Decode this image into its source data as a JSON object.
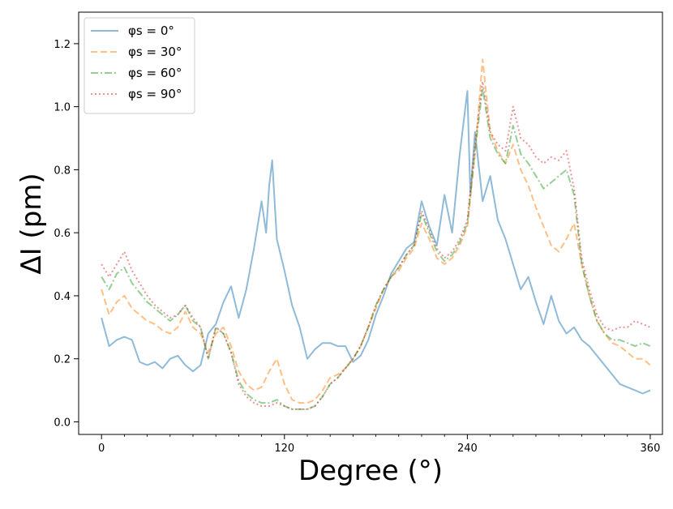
{
  "chart_data": {
    "type": "line",
    "title": "",
    "xlabel": "Degree (°)",
    "ylabel": "ΔI (pm)",
    "xlim": [
      -15,
      368
    ],
    "ylim": [
      -0.04,
      1.3
    ],
    "xticks": [
      0,
      120,
      240,
      360
    ],
    "xtick_labels": [
      "0",
      "120",
      "240",
      "360"
    ],
    "yticks": [
      0.0,
      0.2,
      0.4,
      0.6,
      0.8,
      1.0,
      1.2
    ],
    "ytick_labels": [
      "0.0",
      "0.2",
      "0.4",
      "0.6",
      "0.8",
      "1.0",
      "1.2"
    ],
    "grid": false,
    "legend_position": "top-left",
    "series": [
      {
        "name": "φs = 0°",
        "color": "#1f77b4",
        "dash": "solid",
        "x": [
          0,
          5,
          10,
          15,
          20,
          25,
          30,
          35,
          40,
          45,
          50,
          55,
          60,
          65,
          70,
          75,
          80,
          85,
          90,
          95,
          100,
          105,
          108,
          110,
          112,
          115,
          120,
          125,
          130,
          135,
          140,
          145,
          150,
          155,
          160,
          165,
          170,
          175,
          180,
          185,
          190,
          195,
          200,
          205,
          210,
          215,
          220,
          225,
          230,
          235,
          240,
          242,
          245,
          250,
          255,
          260,
          265,
          270,
          275,
          280,
          285,
          290,
          295,
          300,
          305,
          310,
          315,
          320,
          325,
          330,
          335,
          340,
          345,
          350,
          355,
          360
        ],
        "y": [
          0.33,
          0.24,
          0.26,
          0.27,
          0.26,
          0.19,
          0.18,
          0.19,
          0.17,
          0.2,
          0.21,
          0.18,
          0.16,
          0.18,
          0.28,
          0.31,
          0.38,
          0.43,
          0.33,
          0.42,
          0.55,
          0.7,
          0.6,
          0.75,
          0.83,
          0.58,
          0.48,
          0.37,
          0.3,
          0.2,
          0.23,
          0.25,
          0.25,
          0.24,
          0.24,
          0.19,
          0.21,
          0.26,
          0.34,
          0.4,
          0.47,
          0.51,
          0.55,
          0.57,
          0.7,
          0.62,
          0.56,
          0.72,
          0.6,
          0.85,
          1.05,
          0.72,
          0.92,
          0.7,
          0.78,
          0.64,
          0.58,
          0.5,
          0.42,
          0.46,
          0.38,
          0.31,
          0.4,
          0.32,
          0.28,
          0.3,
          0.26,
          0.24,
          0.21,
          0.18,
          0.15,
          0.12,
          0.11,
          0.1,
          0.09,
          0.1
        ]
      },
      {
        "name": "φs = 30°",
        "color": "#ff7f0e",
        "dash": "dashed",
        "x": [
          0,
          5,
          10,
          15,
          20,
          25,
          30,
          35,
          40,
          45,
          50,
          55,
          60,
          65,
          70,
          75,
          80,
          85,
          90,
          95,
          100,
          105,
          110,
          115,
          120,
          125,
          130,
          135,
          140,
          145,
          150,
          155,
          160,
          165,
          170,
          175,
          180,
          185,
          190,
          195,
          200,
          205,
          210,
          215,
          220,
          225,
          230,
          235,
          240,
          245,
          250,
          255,
          260,
          265,
          270,
          275,
          280,
          285,
          290,
          295,
          300,
          305,
          310,
          315,
          320,
          325,
          330,
          335,
          340,
          345,
          350,
          355,
          360
        ],
        "y": [
          0.42,
          0.34,
          0.38,
          0.4,
          0.36,
          0.34,
          0.32,
          0.31,
          0.29,
          0.28,
          0.3,
          0.35,
          0.3,
          0.28,
          0.22,
          0.28,
          0.3,
          0.24,
          0.16,
          0.12,
          0.1,
          0.11,
          0.16,
          0.2,
          0.12,
          0.07,
          0.06,
          0.06,
          0.07,
          0.1,
          0.14,
          0.15,
          0.17,
          0.2,
          0.24,
          0.3,
          0.36,
          0.42,
          0.46,
          0.48,
          0.52,
          0.55,
          0.63,
          0.58,
          0.52,
          0.5,
          0.52,
          0.56,
          0.62,
          0.85,
          1.15,
          0.92,
          0.86,
          0.82,
          0.88,
          0.8,
          0.75,
          0.68,
          0.62,
          0.56,
          0.54,
          0.58,
          0.63,
          0.5,
          0.4,
          0.32,
          0.28,
          0.25,
          0.24,
          0.22,
          0.2,
          0.2,
          0.18
        ]
      },
      {
        "name": "φs = 60°",
        "color": "#2ca02c",
        "dash": "dashdot",
        "x": [
          0,
          5,
          10,
          15,
          20,
          25,
          30,
          35,
          40,
          45,
          50,
          55,
          60,
          65,
          70,
          75,
          80,
          85,
          90,
          95,
          100,
          105,
          110,
          115,
          120,
          125,
          130,
          135,
          140,
          145,
          150,
          155,
          160,
          165,
          170,
          175,
          180,
          185,
          190,
          195,
          200,
          205,
          210,
          215,
          220,
          225,
          230,
          235,
          240,
          245,
          250,
          255,
          260,
          265,
          270,
          275,
          280,
          285,
          290,
          295,
          300,
          305,
          310,
          315,
          320,
          325,
          330,
          335,
          340,
          345,
          350,
          355,
          360
        ],
        "y": [
          0.46,
          0.42,
          0.47,
          0.49,
          0.44,
          0.41,
          0.38,
          0.36,
          0.34,
          0.32,
          0.34,
          0.37,
          0.32,
          0.3,
          0.2,
          0.3,
          0.28,
          0.22,
          0.13,
          0.09,
          0.07,
          0.06,
          0.06,
          0.07,
          0.05,
          0.04,
          0.04,
          0.04,
          0.05,
          0.08,
          0.12,
          0.14,
          0.17,
          0.2,
          0.24,
          0.3,
          0.37,
          0.42,
          0.46,
          0.49,
          0.53,
          0.56,
          0.66,
          0.6,
          0.54,
          0.51,
          0.53,
          0.57,
          0.63,
          0.86,
          1.06,
          0.9,
          0.85,
          0.82,
          0.94,
          0.85,
          0.82,
          0.78,
          0.74,
          0.76,
          0.78,
          0.8,
          0.72,
          0.5,
          0.4,
          0.32,
          0.28,
          0.26,
          0.26,
          0.25,
          0.24,
          0.25,
          0.24
        ]
      },
      {
        "name": "φs = 90°",
        "color": "#d62728",
        "dash": "dotted",
        "x": [
          0,
          5,
          10,
          15,
          20,
          25,
          30,
          35,
          40,
          45,
          50,
          55,
          60,
          65,
          70,
          75,
          80,
          85,
          90,
          95,
          100,
          105,
          110,
          115,
          120,
          125,
          130,
          135,
          140,
          145,
          150,
          155,
          160,
          165,
          170,
          175,
          180,
          185,
          190,
          195,
          200,
          205,
          210,
          215,
          220,
          225,
          230,
          235,
          240,
          245,
          250,
          255,
          260,
          265,
          270,
          275,
          280,
          285,
          290,
          295,
          300,
          305,
          310,
          315,
          320,
          325,
          330,
          335,
          340,
          345,
          350,
          355,
          360
        ],
        "y": [
          0.5,
          0.46,
          0.5,
          0.54,
          0.48,
          0.44,
          0.4,
          0.37,
          0.35,
          0.33,
          0.34,
          0.37,
          0.33,
          0.3,
          0.2,
          0.3,
          0.28,
          0.22,
          0.12,
          0.08,
          0.06,
          0.05,
          0.05,
          0.06,
          0.05,
          0.04,
          0.04,
          0.04,
          0.05,
          0.08,
          0.12,
          0.14,
          0.17,
          0.2,
          0.24,
          0.3,
          0.37,
          0.42,
          0.46,
          0.49,
          0.53,
          0.56,
          0.67,
          0.61,
          0.55,
          0.52,
          0.54,
          0.58,
          0.64,
          0.88,
          1.08,
          0.92,
          0.88,
          0.86,
          1.0,
          0.9,
          0.88,
          0.84,
          0.82,
          0.84,
          0.83,
          0.86,
          0.74,
          0.52,
          0.42,
          0.34,
          0.3,
          0.29,
          0.3,
          0.3,
          0.32,
          0.31,
          0.3
        ]
      }
    ]
  }
}
